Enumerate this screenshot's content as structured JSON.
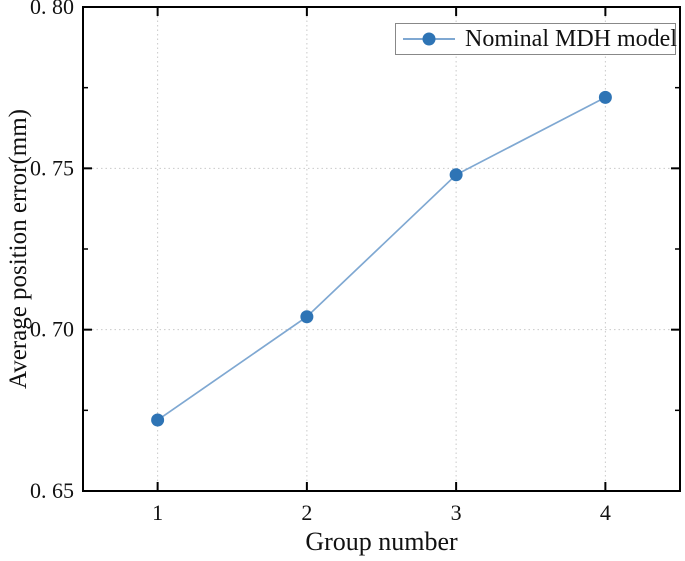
{
  "figure": {
    "background_color": "#ffffff",
    "frame_color": "#000000",
    "grid_color": "#c9c9c9",
    "text_color": "#111111"
  },
  "legend": {
    "label": "Nominal MDH model",
    "position": "top-right",
    "border_color": "#888888"
  },
  "chart_data": {
    "type": "line",
    "title": "",
    "xlabel": "Group number",
    "ylabel": "Average position error(mm)",
    "x": [
      1,
      2,
      3,
      4
    ],
    "series": [
      {
        "name": "Nominal MDH model",
        "values": [
          0.672,
          0.704,
          0.748,
          0.772
        ],
        "line_color": "#7FA8D2",
        "marker_color": "#2E74B5",
        "marker": "circle"
      }
    ],
    "xlim": [
      0.5,
      4.5
    ],
    "ylim": [
      0.65,
      0.8
    ],
    "x_ticks": {
      "values": [
        1,
        2,
        3,
        4
      ],
      "labels": [
        "1",
        "2",
        "3",
        "4"
      ]
    },
    "y_ticks": {
      "values": [
        0.65,
        0.7,
        0.75,
        0.8
      ],
      "labels": [
        "0. 65",
        "0. 70",
        "0. 75",
        "0. 80"
      ]
    },
    "y_minor_ticks": [
      0.675,
      0.725,
      0.775
    ],
    "grid": "dotted-at-major-ticks",
    "legend_position": "upper right"
  }
}
